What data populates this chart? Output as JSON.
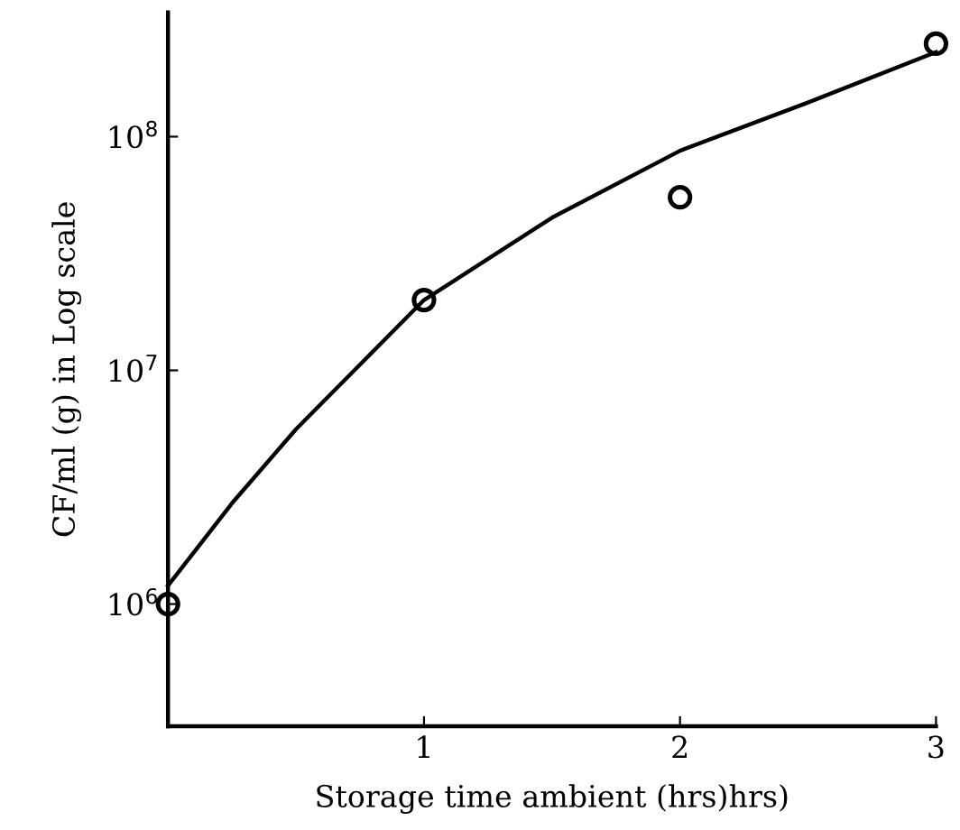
{
  "chart_data": {
    "type": "scatter",
    "xlabel": "Storage time ambient (hrs)hrs)",
    "ylabel": "CF/ml (g) in Log scale",
    "log": "y",
    "xlim": [
      0,
      3
    ],
    "ylim": [
      300000,
      340000000
    ],
    "xticks": [
      {
        "value": 0,
        "label": null
      },
      1,
      2,
      3
    ],
    "yticks": [
      {
        "value": 1000000,
        "label": "10$^{6}$"
      },
      {
        "value": 10000000,
        "label": "10$^{7}$"
      },
      {
        "value": 100000000,
        "label": "10$^{8}$"
      }
    ],
    "grid": false,
    "legend": false,
    "series": [
      {
        "color": "#000000",
        "marker": "circle",
        "x": [
          0,
          1,
          2,
          3
        ],
        "values": [
          1000000,
          20000000,
          55000000,
          250000000
        ]
      },
      {
        "type": "line",
        "color": "#000000",
        "marker": "none",
        "line_style": "solid",
        "x": [
          0,
          0.25,
          0.5,
          1,
          1.5,
          2,
          2.5,
          3
        ],
        "values": [
          1200000,
          2700000,
          5600000,
          20000000,
          45000000,
          87000000,
          140000000,
          230000000
        ]
      }
    ]
  }
}
